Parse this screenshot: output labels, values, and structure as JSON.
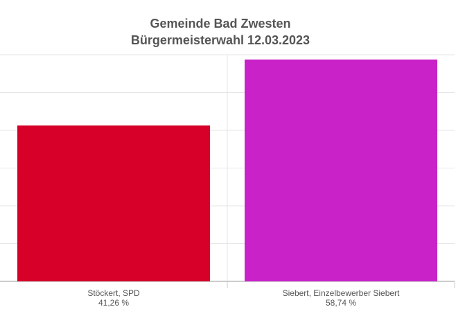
{
  "chart_data": {
    "type": "bar",
    "title": [
      "Gemeinde Bad Zwesten",
      "Bürgermeisterwahl 12.03.2023"
    ],
    "categories": [
      "Stöckert, SPD",
      "Siebert, Einzelbewerber Siebert"
    ],
    "values": [
      41.26,
      58.74
    ],
    "value_labels": [
      "41,26 %",
      "58,74 %"
    ],
    "colors": [
      "#d60028",
      "#c822c8"
    ],
    "xlabel": "",
    "ylabel": "",
    "ylim": [
      0,
      60
    ],
    "ytick_step": 10,
    "grid": true
  }
}
